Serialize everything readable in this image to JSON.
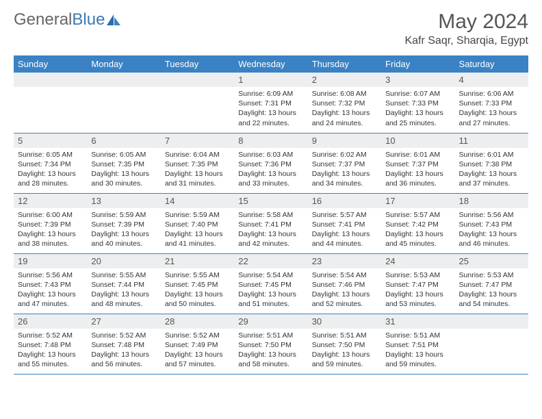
{
  "brand": {
    "part1": "General",
    "part2": "Blue"
  },
  "title": "May 2024",
  "location": "Kafr Saqr, Sharqia, Egypt",
  "colors": {
    "header_bg": "#3a82c4",
    "header_text": "#ffffff",
    "daynum_bg": "#eceeef",
    "border": "#3a82c4",
    "logo_accent": "#3a7ab8"
  },
  "weekdays": [
    "Sunday",
    "Monday",
    "Tuesday",
    "Wednesday",
    "Thursday",
    "Friday",
    "Saturday"
  ],
  "weeks": [
    [
      {
        "n": "",
        "sr": "",
        "ss": "",
        "dl": ""
      },
      {
        "n": "",
        "sr": "",
        "ss": "",
        "dl": ""
      },
      {
        "n": "",
        "sr": "",
        "ss": "",
        "dl": ""
      },
      {
        "n": "1",
        "sr": "Sunrise: 6:09 AM",
        "ss": "Sunset: 7:31 PM",
        "dl": "Daylight: 13 hours and 22 minutes."
      },
      {
        "n": "2",
        "sr": "Sunrise: 6:08 AM",
        "ss": "Sunset: 7:32 PM",
        "dl": "Daylight: 13 hours and 24 minutes."
      },
      {
        "n": "3",
        "sr": "Sunrise: 6:07 AM",
        "ss": "Sunset: 7:33 PM",
        "dl": "Daylight: 13 hours and 25 minutes."
      },
      {
        "n": "4",
        "sr": "Sunrise: 6:06 AM",
        "ss": "Sunset: 7:33 PM",
        "dl": "Daylight: 13 hours and 27 minutes."
      }
    ],
    [
      {
        "n": "5",
        "sr": "Sunrise: 6:05 AM",
        "ss": "Sunset: 7:34 PM",
        "dl": "Daylight: 13 hours and 28 minutes."
      },
      {
        "n": "6",
        "sr": "Sunrise: 6:05 AM",
        "ss": "Sunset: 7:35 PM",
        "dl": "Daylight: 13 hours and 30 minutes."
      },
      {
        "n": "7",
        "sr": "Sunrise: 6:04 AM",
        "ss": "Sunset: 7:35 PM",
        "dl": "Daylight: 13 hours and 31 minutes."
      },
      {
        "n": "8",
        "sr": "Sunrise: 6:03 AM",
        "ss": "Sunset: 7:36 PM",
        "dl": "Daylight: 13 hours and 33 minutes."
      },
      {
        "n": "9",
        "sr": "Sunrise: 6:02 AM",
        "ss": "Sunset: 7:37 PM",
        "dl": "Daylight: 13 hours and 34 minutes."
      },
      {
        "n": "10",
        "sr": "Sunrise: 6:01 AM",
        "ss": "Sunset: 7:37 PM",
        "dl": "Daylight: 13 hours and 36 minutes."
      },
      {
        "n": "11",
        "sr": "Sunrise: 6:01 AM",
        "ss": "Sunset: 7:38 PM",
        "dl": "Daylight: 13 hours and 37 minutes."
      }
    ],
    [
      {
        "n": "12",
        "sr": "Sunrise: 6:00 AM",
        "ss": "Sunset: 7:39 PM",
        "dl": "Daylight: 13 hours and 38 minutes."
      },
      {
        "n": "13",
        "sr": "Sunrise: 5:59 AM",
        "ss": "Sunset: 7:39 PM",
        "dl": "Daylight: 13 hours and 40 minutes."
      },
      {
        "n": "14",
        "sr": "Sunrise: 5:59 AM",
        "ss": "Sunset: 7:40 PM",
        "dl": "Daylight: 13 hours and 41 minutes."
      },
      {
        "n": "15",
        "sr": "Sunrise: 5:58 AM",
        "ss": "Sunset: 7:41 PM",
        "dl": "Daylight: 13 hours and 42 minutes."
      },
      {
        "n": "16",
        "sr": "Sunrise: 5:57 AM",
        "ss": "Sunset: 7:41 PM",
        "dl": "Daylight: 13 hours and 44 minutes."
      },
      {
        "n": "17",
        "sr": "Sunrise: 5:57 AM",
        "ss": "Sunset: 7:42 PM",
        "dl": "Daylight: 13 hours and 45 minutes."
      },
      {
        "n": "18",
        "sr": "Sunrise: 5:56 AM",
        "ss": "Sunset: 7:43 PM",
        "dl": "Daylight: 13 hours and 46 minutes."
      }
    ],
    [
      {
        "n": "19",
        "sr": "Sunrise: 5:56 AM",
        "ss": "Sunset: 7:43 PM",
        "dl": "Daylight: 13 hours and 47 minutes."
      },
      {
        "n": "20",
        "sr": "Sunrise: 5:55 AM",
        "ss": "Sunset: 7:44 PM",
        "dl": "Daylight: 13 hours and 48 minutes."
      },
      {
        "n": "21",
        "sr": "Sunrise: 5:55 AM",
        "ss": "Sunset: 7:45 PM",
        "dl": "Daylight: 13 hours and 50 minutes."
      },
      {
        "n": "22",
        "sr": "Sunrise: 5:54 AM",
        "ss": "Sunset: 7:45 PM",
        "dl": "Daylight: 13 hours and 51 minutes."
      },
      {
        "n": "23",
        "sr": "Sunrise: 5:54 AM",
        "ss": "Sunset: 7:46 PM",
        "dl": "Daylight: 13 hours and 52 minutes."
      },
      {
        "n": "24",
        "sr": "Sunrise: 5:53 AM",
        "ss": "Sunset: 7:47 PM",
        "dl": "Daylight: 13 hours and 53 minutes."
      },
      {
        "n": "25",
        "sr": "Sunrise: 5:53 AM",
        "ss": "Sunset: 7:47 PM",
        "dl": "Daylight: 13 hours and 54 minutes."
      }
    ],
    [
      {
        "n": "26",
        "sr": "Sunrise: 5:52 AM",
        "ss": "Sunset: 7:48 PM",
        "dl": "Daylight: 13 hours and 55 minutes."
      },
      {
        "n": "27",
        "sr": "Sunrise: 5:52 AM",
        "ss": "Sunset: 7:48 PM",
        "dl": "Daylight: 13 hours and 56 minutes."
      },
      {
        "n": "28",
        "sr": "Sunrise: 5:52 AM",
        "ss": "Sunset: 7:49 PM",
        "dl": "Daylight: 13 hours and 57 minutes."
      },
      {
        "n": "29",
        "sr": "Sunrise: 5:51 AM",
        "ss": "Sunset: 7:50 PM",
        "dl": "Daylight: 13 hours and 58 minutes."
      },
      {
        "n": "30",
        "sr": "Sunrise: 5:51 AM",
        "ss": "Sunset: 7:50 PM",
        "dl": "Daylight: 13 hours and 59 minutes."
      },
      {
        "n": "31",
        "sr": "Sunrise: 5:51 AM",
        "ss": "Sunset: 7:51 PM",
        "dl": "Daylight: 13 hours and 59 minutes."
      },
      {
        "n": "",
        "sr": "",
        "ss": "",
        "dl": ""
      }
    ]
  ]
}
